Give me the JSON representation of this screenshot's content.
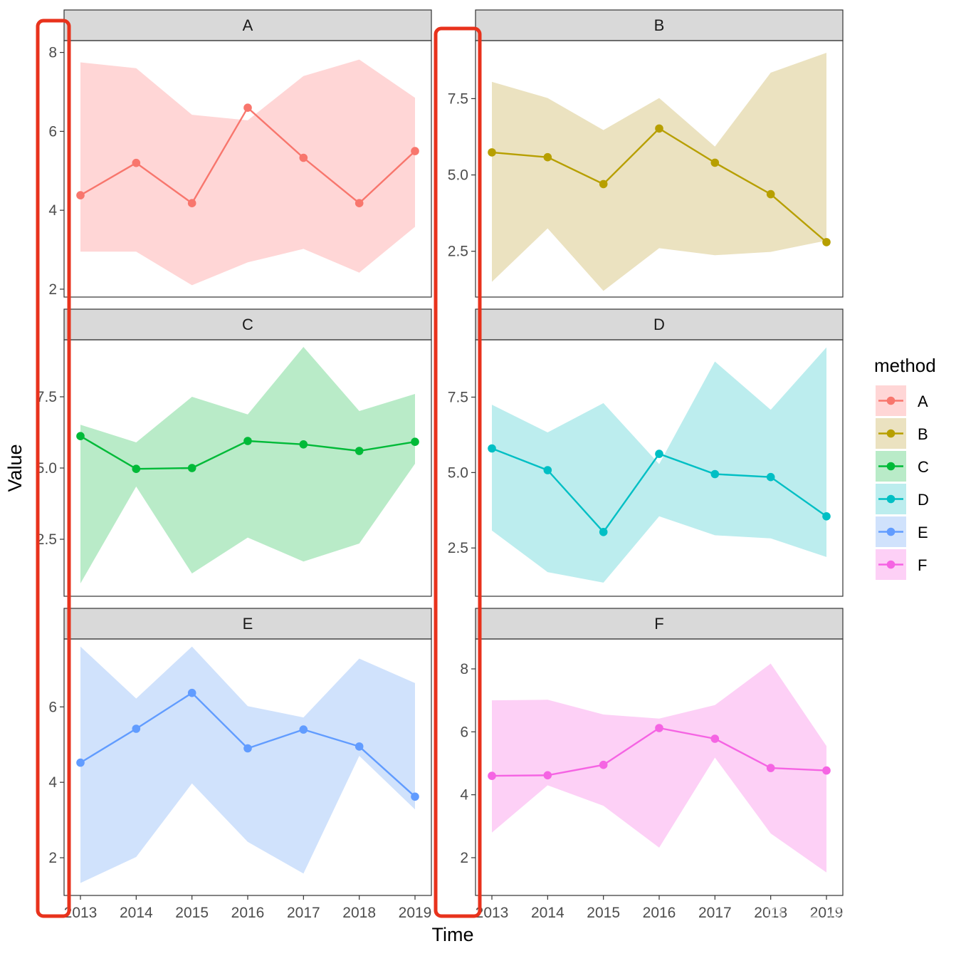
{
  "chart_data": {
    "type": "line",
    "subtype": "faceted line with ribbon (geom_ribbon + geom_line + geom_point)",
    "xlabel": "Time",
    "ylabel": "Value",
    "legend": {
      "title": "method",
      "placement": "right"
    },
    "x_ticks": [
      "2013",
      "2014",
      "2015",
      "2016",
      "2017",
      "2018",
      "2019"
    ],
    "x": [
      2013,
      2014,
      2015,
      2016,
      2017,
      2018,
      2019
    ],
    "facets": [
      {
        "name": "A",
        "color": "#F8766D",
        "fill": "#FFD6D6",
        "ylim": [
          1.8,
          8.3
        ],
        "yticks": [
          2,
          4,
          6,
          8
        ],
        "tick_labels": [
          "2",
          "4",
          "6",
          "8"
        ],
        "values": [
          4.38,
          5.2,
          4.18,
          6.6,
          5.33,
          4.18,
          5.5
        ],
        "upper": [
          7.75,
          7.6,
          6.42,
          6.28,
          7.4,
          7.82,
          6.85
        ],
        "lower": [
          2.95,
          2.95,
          2.1,
          2.68,
          3.02,
          2.42,
          3.58
        ]
      },
      {
        "name": "B",
        "color": "#B79F00",
        "fill": "#EBE2C0",
        "ylim": [
          1.0,
          9.4
        ],
        "yticks": [
          2.5,
          5.0,
          7.5
        ],
        "tick_labels": [
          "2.5",
          "5.0",
          "7.5"
        ],
        "values": [
          5.74,
          5.58,
          4.7,
          6.52,
          5.4,
          4.37,
          2.8
        ],
        "upper": [
          8.05,
          7.52,
          6.47,
          7.52,
          5.93,
          8.35,
          9.0
        ],
        "lower": [
          1.5,
          3.25,
          1.2,
          2.6,
          2.37,
          2.48,
          2.85
        ]
      },
      {
        "name": "C",
        "color": "#00BA38",
        "fill": "#B9EBC8",
        "ylim": [
          0.5,
          9.5
        ],
        "yticks": [
          2.5,
          5.0,
          7.5
        ],
        "tick_labels": [
          "2.5",
          "5.0",
          "7.5"
        ],
        "values": [
          6.12,
          4.97,
          5.0,
          5.95,
          5.83,
          5.6,
          5.92
        ],
        "upper": [
          6.52,
          5.9,
          7.5,
          6.88,
          9.25,
          7.0,
          7.6
        ],
        "lower": [
          0.95,
          4.35,
          1.3,
          2.56,
          1.72,
          2.35,
          5.15
        ]
      },
      {
        "name": "D",
        "color": "#00BFC4",
        "fill": "#BCEDEE",
        "ylim": [
          0.9,
          9.4
        ],
        "yticks": [
          2.5,
          5.0,
          7.5
        ],
        "tick_labels": [
          "2.5",
          "5.0",
          "7.5"
        ],
        "values": [
          5.8,
          5.08,
          3.03,
          5.62,
          4.95,
          4.85,
          3.55
        ],
        "upper": [
          7.25,
          6.33,
          7.3,
          5.28,
          8.68,
          7.08,
          9.15
        ],
        "lower": [
          3.08,
          1.7,
          1.35,
          3.55,
          2.92,
          2.82,
          2.2
        ]
      },
      {
        "name": "E",
        "color": "#619CFF",
        "fill": "#D0E2FC",
        "ylim": [
          1.0,
          7.8
        ],
        "yticks": [
          2,
          4,
          6
        ],
        "tick_labels": [
          "2",
          "4",
          "6"
        ],
        "values": [
          4.52,
          5.42,
          6.37,
          4.9,
          5.4,
          4.95,
          3.62
        ],
        "upper": [
          7.6,
          6.22,
          7.6,
          6.02,
          5.72,
          7.28,
          6.63
        ],
        "lower": [
          1.33,
          2.02,
          3.97,
          2.42,
          1.58,
          4.7,
          3.28
        ]
      },
      {
        "name": "F",
        "color": "#F564E3",
        "fill": "#FDD0F6",
        "ylim": [
          0.8,
          8.95
        ],
        "yticks": [
          2,
          4,
          6,
          8
        ],
        "tick_labels": [
          "2",
          "4",
          "6",
          "8"
        ],
        "values": [
          4.6,
          4.62,
          4.95,
          6.12,
          5.78,
          4.85,
          4.77
        ],
        "upper": [
          7.0,
          7.02,
          6.55,
          6.42,
          6.85,
          8.17,
          5.55
        ],
        "lower": [
          2.8,
          4.3,
          3.65,
          2.32,
          5.18,
          2.77,
          1.53
        ]
      }
    ]
  },
  "highlights": {
    "color": "#E8321C"
  },
  "watermark": {
    "text": "知乎 @庄闪闪"
  }
}
